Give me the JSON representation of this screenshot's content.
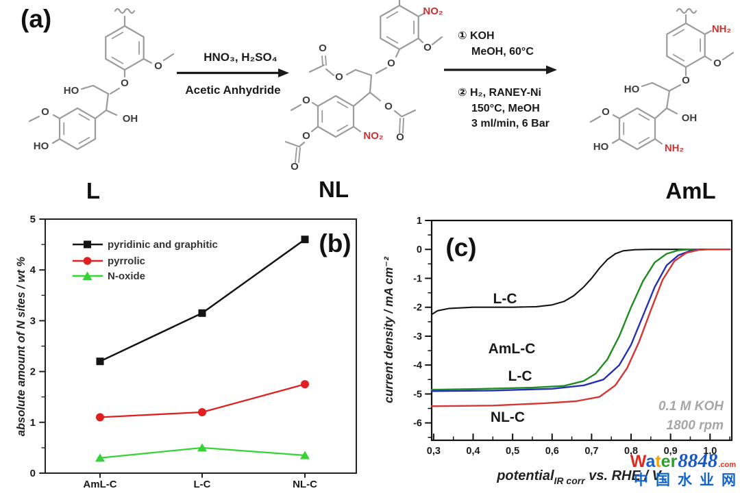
{
  "panel_a": {
    "label": "(a)",
    "step1": {
      "above": "HNO₃,  H₂SO₄",
      "below": "Acetic Anhydride"
    },
    "step2": {
      "above1": "① KOH",
      "above2": "MeOH, 60°C",
      "below1": "② H₂, RANEY-Ni",
      "below2": "150°C, MeOH",
      "below3": "3 ml/min, 6 Bar"
    },
    "mol_l": {
      "caption": "L",
      "ho_chain": "HO",
      "o_ether": "O",
      "oh_chain": "OH",
      "o_methoxy_top": "O",
      "o_methoxy_bottom": "O",
      "ho_phenol": "HO"
    },
    "mol_nl": {
      "caption": "NL",
      "no2_top": "NO₂",
      "no2_bottom": "NO₂",
      "o_methoxy_top": "O",
      "o_ether": "O",
      "o_ester1": "O",
      "o_carbonyl1": "O",
      "o_ester2": "O",
      "o_carbonyl2": "O",
      "o_methoxy_bottom": "O",
      "o_ester3": "O",
      "o_carbonyl3": "O"
    },
    "mol_aml": {
      "caption": "AmL",
      "nh2_top": "NH₂",
      "nh2_bottom": "NH₂",
      "ho_chain": "HO",
      "o_ether": "O",
      "oh_chain": "OH",
      "o_methoxy_top": "O",
      "o_methoxy_bottom": "O",
      "ho_phenol": "HO"
    }
  },
  "chart_data": [
    {
      "id": "panel_b",
      "type": "line",
      "label": "(b)",
      "ylabel": "absolute amount of N sites / wt %",
      "categories": [
        "AmL-C",
        "L-C",
        "NL-C"
      ],
      "ylim": [
        0,
        5
      ],
      "y_ticks": [
        0,
        1,
        2,
        3,
        4,
        5
      ],
      "grid": false,
      "legend_position": "top-left",
      "series": [
        {
          "name": "pyridinic and graphitic",
          "color": "#141414",
          "marker": "square",
          "values": [
            2.2,
            3.15,
            4.6
          ]
        },
        {
          "name": "pyrrolic",
          "color": "#e02020",
          "marker": "circle",
          "values": [
            1.1,
            1.2,
            1.75
          ]
        },
        {
          "name": "N-oxide",
          "color": "#35d435",
          "marker": "triangle",
          "values": [
            0.3,
            0.5,
            0.35
          ]
        }
      ]
    },
    {
      "id": "panel_c",
      "type": "line",
      "label": "(c)",
      "ylabel": "current density / mA cm⁻²",
      "xlabel_main": "potential",
      "xlabel_sub": "IR corr",
      "xlabel_rest": " vs. RHE / V",
      "xlim": [
        0.295,
        1.055
      ],
      "ylim": [
        -6.6,
        1.0
      ],
      "x_ticks": [
        0.3,
        0.4,
        0.5,
        0.6,
        0.7,
        0.8,
        0.9,
        1.0
      ],
      "x_tick_labels": [
        "0,3",
        "0,4",
        "0,5",
        "0,6",
        "0,7",
        "0,8",
        "0,9",
        "1,0"
      ],
      "y_ticks": [
        1,
        0,
        -1,
        -2,
        -3,
        -4,
        -5,
        -6
      ],
      "annotation": {
        "line1": "0.1 M KOH",
        "line2": "1800 rpm"
      },
      "grid": false,
      "series": [
        {
          "name": "L-C",
          "color": "#141414",
          "points": [
            [
              0.295,
              -2.25
            ],
            [
              0.31,
              -2.12
            ],
            [
              0.34,
              -2.04
            ],
            [
              0.4,
              -2.0
            ],
            [
              0.5,
              -2.0
            ],
            [
              0.56,
              -1.98
            ],
            [
              0.6,
              -1.92
            ],
            [
              0.63,
              -1.8
            ],
            [
              0.655,
              -1.6
            ],
            [
              0.68,
              -1.3
            ],
            [
              0.7,
              -1.0
            ],
            [
              0.72,
              -0.65
            ],
            [
              0.74,
              -0.35
            ],
            [
              0.76,
              -0.15
            ],
            [
              0.78,
              -0.05
            ],
            [
              0.81,
              -0.01
            ],
            [
              0.85,
              0
            ],
            [
              1.05,
              0
            ]
          ]
        },
        {
          "name": "AmL-C",
          "color": "#1f8c1f",
          "points": [
            [
              0.295,
              -4.85
            ],
            [
              0.4,
              -4.83
            ],
            [
              0.55,
              -4.78
            ],
            [
              0.63,
              -4.72
            ],
            [
              0.68,
              -4.55
            ],
            [
              0.71,
              -4.3
            ],
            [
              0.74,
              -3.8
            ],
            [
              0.77,
              -3.0
            ],
            [
              0.8,
              -2.0
            ],
            [
              0.83,
              -1.1
            ],
            [
              0.86,
              -0.45
            ],
            [
              0.89,
              -0.15
            ],
            [
              0.92,
              -0.03
            ],
            [
              0.95,
              0
            ],
            [
              1.05,
              0
            ]
          ]
        },
        {
          "name": "L-C",
          "color": "#2430b4",
          "points": [
            [
              0.295,
              -4.9
            ],
            [
              0.45,
              -4.88
            ],
            [
              0.6,
              -4.82
            ],
            [
              0.68,
              -4.7
            ],
            [
              0.73,
              -4.5
            ],
            [
              0.77,
              -4.0
            ],
            [
              0.8,
              -3.3
            ],
            [
              0.83,
              -2.3
            ],
            [
              0.86,
              -1.3
            ],
            [
              0.89,
              -0.55
            ],
            [
              0.92,
              -0.2
            ],
            [
              0.95,
              -0.05
            ],
            [
              0.98,
              0
            ],
            [
              1.05,
              0
            ]
          ]
        },
        {
          "name": "NL-C",
          "color": "#d43535",
          "points": [
            [
              0.295,
              -5.42
            ],
            [
              0.45,
              -5.4
            ],
            [
              0.58,
              -5.32
            ],
            [
              0.66,
              -5.25
            ],
            [
              0.72,
              -5.1
            ],
            [
              0.76,
              -4.7
            ],
            [
              0.79,
              -4.1
            ],
            [
              0.82,
              -3.2
            ],
            [
              0.85,
              -2.1
            ],
            [
              0.88,
              -1.05
            ],
            [
              0.91,
              -0.4
            ],
            [
              0.94,
              -0.12
            ],
            [
              0.97,
              -0.02
            ],
            [
              1.0,
              0
            ],
            [
              1.05,
              0
            ]
          ]
        }
      ]
    }
  ],
  "watermark": {
    "letters": [
      {
        "ch": "W",
        "color": "#e02c1f"
      },
      {
        "ch": "a",
        "color": "#1761d0"
      },
      {
        "ch": "t",
        "color": "#f4a300"
      },
      {
        "ch": "e",
        "color": "#2f9e2f"
      },
      {
        "ch": "r",
        "color": "#2f9e2f"
      }
    ],
    "number": "8848",
    "tld": ".com",
    "cn": "中国水业网"
  }
}
